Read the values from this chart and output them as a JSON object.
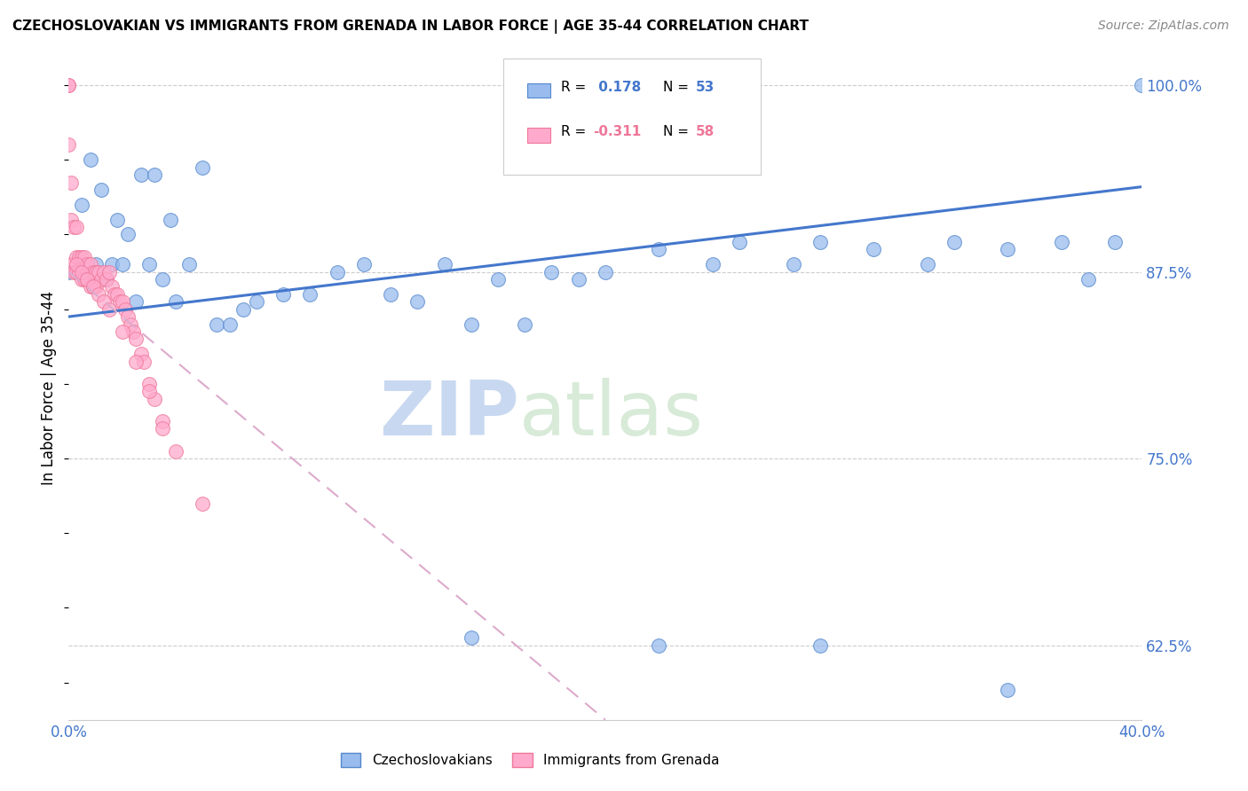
{
  "title": "CZECHOSLOVAKIAN VS IMMIGRANTS FROM GRENADA IN LABOR FORCE | AGE 35-44 CORRELATION CHART",
  "source": "Source: ZipAtlas.com",
  "ylabel": "In Labor Force | Age 35-44",
  "R_blue": 0.178,
  "N_blue": 53,
  "R_pink": -0.311,
  "N_pink": 58,
  "blue_scatter_color": "#99BBEE",
  "blue_edge_color": "#5588CC",
  "pink_scatter_color": "#FFAACC",
  "pink_edge_color": "#EE7799",
  "blue_line_color": "#4477CC",
  "pink_line_color": "#DDAACC",
  "legend_label_blue": "Czechoslovakians",
  "legend_label_pink": "Immigrants from Grenada",
  "xlim": [
    0.0,
    0.4
  ],
  "ylim": [
    0.575,
    1.02
  ],
  "yticks": [
    0.625,
    0.75,
    0.875,
    1.0
  ],
  "ytick_labels": [
    "62.5%",
    "75.0%",
    "87.5%",
    "100.0%"
  ],
  "xticks": [
    0.0,
    0.05,
    0.1,
    0.15,
    0.2,
    0.25,
    0.3,
    0.35,
    0.4
  ],
  "xtick_labels": [
    "0.0%",
    "",
    "",
    "",
    "",
    "",
    "",
    "",
    "40.0%"
  ],
  "watermark_zip": "ZIP",
  "watermark_atlas": "atlas",
  "blue_trend_x0": 0.0,
  "blue_trend_y0": 0.845,
  "blue_trend_x1": 0.4,
  "blue_trend_y1": 0.932,
  "pink_trend_x0": 0.0,
  "pink_trend_y0": 0.875,
  "pink_trend_x1": 0.2,
  "pink_trend_y1": 0.575,
  "blue_x": [
    0.0,
    0.005,
    0.008,
    0.01,
    0.012,
    0.014,
    0.016,
    0.018,
    0.02,
    0.022,
    0.025,
    0.027,
    0.03,
    0.032,
    0.035,
    0.038,
    0.04,
    0.045,
    0.05,
    0.055,
    0.06,
    0.065,
    0.07,
    0.08,
    0.09,
    0.1,
    0.11,
    0.12,
    0.13,
    0.14,
    0.15,
    0.16,
    0.17,
    0.18,
    0.19,
    0.2,
    0.22,
    0.24,
    0.25,
    0.27,
    0.28,
    0.3,
    0.32,
    0.33,
    0.35,
    0.37,
    0.38,
    0.39,
    0.4,
    0.15,
    0.22,
    0.28,
    0.35
  ],
  "blue_y": [
    0.875,
    0.92,
    0.95,
    0.88,
    0.93,
    0.87,
    0.88,
    0.91,
    0.88,
    0.9,
    0.855,
    0.94,
    0.88,
    0.94,
    0.87,
    0.91,
    0.855,
    0.88,
    0.945,
    0.84,
    0.84,
    0.85,
    0.855,
    0.86,
    0.86,
    0.875,
    0.88,
    0.86,
    0.855,
    0.88,
    0.84,
    0.87,
    0.84,
    0.875,
    0.87,
    0.875,
    0.89,
    0.88,
    0.895,
    0.88,
    0.895,
    0.89,
    0.88,
    0.895,
    0.89,
    0.895,
    0.87,
    0.895,
    1.0,
    0.63,
    0.625,
    0.625,
    0.595
  ],
  "pink_x": [
    0.0,
    0.0,
    0.0,
    0.001,
    0.001,
    0.001,
    0.002,
    0.002,
    0.003,
    0.003,
    0.003,
    0.004,
    0.004,
    0.005,
    0.005,
    0.006,
    0.006,
    0.007,
    0.007,
    0.008,
    0.008,
    0.009,
    0.009,
    0.01,
    0.01,
    0.011,
    0.012,
    0.013,
    0.014,
    0.015,
    0.016,
    0.017,
    0.018,
    0.019,
    0.02,
    0.021,
    0.022,
    0.023,
    0.024,
    0.025,
    0.027,
    0.028,
    0.03,
    0.032,
    0.035,
    0.003,
    0.005,
    0.007,
    0.009,
    0.011,
    0.013,
    0.015,
    0.02,
    0.025,
    0.03,
    0.035,
    0.04,
    0.05
  ],
  "pink_y": [
    1.0,
    1.0,
    0.96,
    0.935,
    0.91,
    0.88,
    0.905,
    0.875,
    0.905,
    0.885,
    0.875,
    0.885,
    0.875,
    0.885,
    0.87,
    0.885,
    0.87,
    0.88,
    0.87,
    0.88,
    0.865,
    0.875,
    0.865,
    0.875,
    0.865,
    0.875,
    0.87,
    0.875,
    0.87,
    0.875,
    0.865,
    0.86,
    0.86,
    0.855,
    0.855,
    0.85,
    0.845,
    0.84,
    0.835,
    0.83,
    0.82,
    0.815,
    0.8,
    0.79,
    0.775,
    0.88,
    0.875,
    0.87,
    0.865,
    0.86,
    0.855,
    0.85,
    0.835,
    0.815,
    0.795,
    0.77,
    0.755,
    0.72
  ]
}
